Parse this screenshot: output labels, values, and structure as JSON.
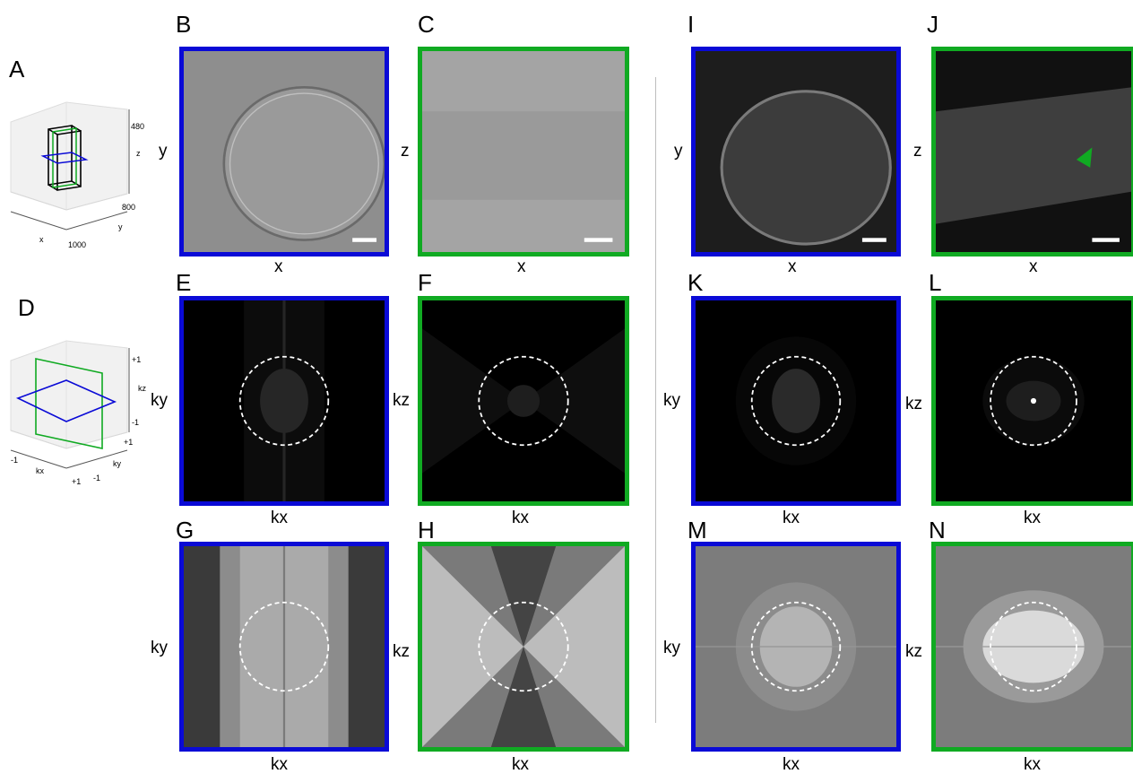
{
  "panel_letters": {
    "A": "A",
    "B": "B",
    "C": "C",
    "D": "D",
    "E": "E",
    "F": "F",
    "G": "G",
    "H": "H",
    "I": "I",
    "J": "J",
    "K": "K",
    "L": "L",
    "M": "M",
    "N": "N"
  },
  "axis_labels": {
    "x": "x",
    "y": "y",
    "z": "z",
    "kx": "kx",
    "ky": "ky",
    "kz": "kz"
  },
  "schematic_A": {
    "z_tick": "480",
    "y_tick": "800",
    "x_tick": "1000",
    "x_label": "x",
    "y_label": "y",
    "z_label": "z"
  },
  "schematic_D": {
    "z_top": "+1",
    "z_bottom": "-1",
    "y_top": "+1",
    "y_bottom": "-1",
    "x_left": "-1",
    "x_right": "+1",
    "x_label": "kx",
    "y_label": "ky",
    "z_label": "kz"
  },
  "colors": {
    "xy_frame": "#0a0ad6",
    "xz_frame": "#10aa22",
    "arrowhead": "#10aa22",
    "circle": "#ffffff"
  },
  "icons": {
    "arrowhead": "green-arrowhead-icon"
  }
}
